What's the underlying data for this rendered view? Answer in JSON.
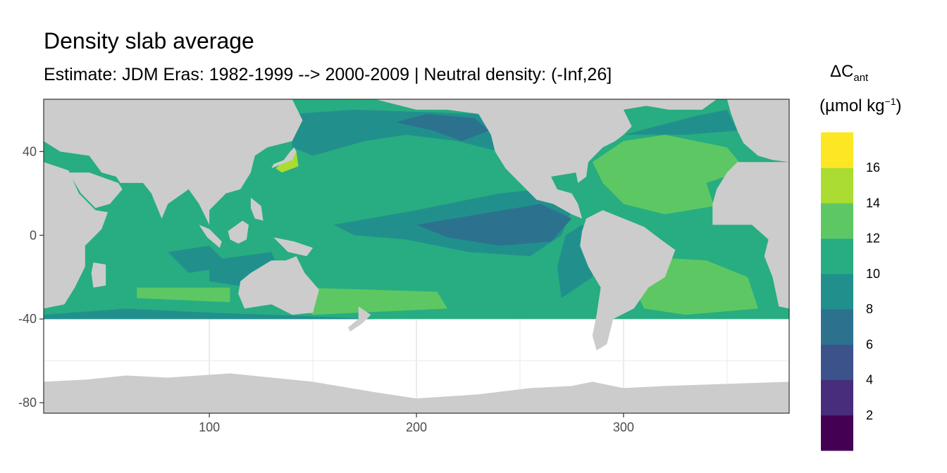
{
  "chart_data": {
    "type": "heatmap",
    "title": "Density slab average",
    "subtitle": "Estimate: JDM Eras: 1982-1999 --> 2000-2009 | Neutral density: (-Inf,26]",
    "xlabel": "",
    "ylabel": "",
    "xlim": [
      20,
      380
    ],
    "ylim": [
      -85,
      65
    ],
    "x_ticks": [
      100,
      200,
      300
    ],
    "y_ticks": [
      40,
      0,
      -40,
      -80
    ],
    "legend": {
      "title_main": "ΔC",
      "title_sub": "ant",
      "unit_prefix": "(µmol kg",
      "unit_sup": "−1",
      "unit_suffix": ")",
      "placement": "right",
      "breaks": [
        2,
        4,
        6,
        8,
        10,
        12,
        14,
        16
      ],
      "colors": [
        "#440154",
        "#472d7b",
        "#3b528b",
        "#2c728e",
        "#21908d",
        "#27ad81",
        "#5dc863",
        "#aadc32",
        "#fde725"
      ]
    },
    "colors": {
      "land": "#cccccc",
      "no_data": "#ffffff",
      "grid": "#ebebeb",
      "panel_border": "#333333"
    },
    "ocean_regions": [
      {
        "level": 12,
        "points": [
          [
            20,
            -40
          ],
          [
            380,
            -40
          ],
          [
            380,
            65
          ],
          [
            20,
            65
          ]
        ]
      },
      {
        "level": 10,
        "points": [
          [
            140,
            58
          ],
          [
            170,
            60
          ],
          [
            230,
            58
          ],
          [
            245,
            48
          ],
          [
            240,
            40
          ],
          [
            220,
            45
          ],
          [
            195,
            48
          ],
          [
            175,
            45
          ],
          [
            150,
            38
          ],
          [
            140,
            42
          ]
        ]
      },
      {
        "level": 8,
        "points": [
          [
            190,
            54
          ],
          [
            205,
            58
          ],
          [
            228,
            56
          ],
          [
            235,
            50
          ],
          [
            222,
            45
          ],
          [
            208,
            50
          ]
        ]
      },
      {
        "level": 10,
        "points": [
          [
            160,
            5
          ],
          [
            200,
            12
          ],
          [
            240,
            20
          ],
          [
            260,
            22
          ],
          [
            275,
            12
          ],
          [
            270,
            0
          ],
          [
            255,
            -10
          ],
          [
            225,
            -8
          ],
          [
            195,
            -2
          ],
          [
            170,
            0
          ]
        ]
      },
      {
        "level": 8,
        "points": [
          [
            200,
            5
          ],
          [
            230,
            10
          ],
          [
            260,
            15
          ],
          [
            275,
            8
          ],
          [
            265,
            -3
          ],
          [
            240,
            -5
          ],
          [
            215,
            -1
          ]
        ]
      },
      {
        "level": 10,
        "points": [
          [
            270,
            -30
          ],
          [
            285,
            -20
          ],
          [
            285,
            0
          ],
          [
            280,
            5
          ],
          [
            272,
            0
          ],
          [
            268,
            -15
          ]
        ]
      },
      {
        "level": 10,
        "points": [
          [
            100,
            -12
          ],
          [
            130,
            -8
          ],
          [
            135,
            -20
          ],
          [
            120,
            -25
          ],
          [
            100,
            -22
          ]
        ]
      },
      {
        "level": 10,
        "points": [
          [
            80,
            -8
          ],
          [
            100,
            -5
          ],
          [
            110,
            -15
          ],
          [
            90,
            -18
          ]
        ]
      },
      {
        "level": 14,
        "points": [
          [
            285,
            35
          ],
          [
            300,
            45
          ],
          [
            320,
            48
          ],
          [
            350,
            42
          ],
          [
            360,
            30
          ],
          [
            350,
            15
          ],
          [
            320,
            10
          ],
          [
            300,
            15
          ],
          [
            290,
            25
          ]
        ]
      },
      {
        "level": 12,
        "points": [
          [
            340,
            25
          ],
          [
            355,
            30
          ],
          [
            360,
            20
          ],
          [
            345,
            10
          ]
        ]
      },
      {
        "level": 14,
        "points": [
          [
            305,
            -10
          ],
          [
            340,
            -12
          ],
          [
            360,
            -20
          ],
          [
            365,
            -35
          ],
          [
            330,
            -38
          ],
          [
            310,
            -35
          ],
          [
            305,
            -25
          ]
        ]
      },
      {
        "level": 14,
        "points": [
          [
            65,
            -25
          ],
          [
            110,
            -25
          ],
          [
            110,
            -32
          ],
          [
            65,
            -30
          ]
        ]
      },
      {
        "level": 14,
        "points": [
          [
            145,
            -25
          ],
          [
            210,
            -27
          ],
          [
            215,
            -35
          ],
          [
            150,
            -38
          ],
          [
            140,
            -32
          ]
        ]
      },
      {
        "level": 10,
        "points": [
          [
            300,
            48
          ],
          [
            335,
            57
          ],
          [
            350,
            60
          ],
          [
            355,
            50
          ],
          [
            330,
            48
          ]
        ]
      },
      {
        "level": 10,
        "points": [
          [
            20,
            -38
          ],
          [
            60,
            -35
          ],
          [
            100,
            -37
          ],
          [
            130,
            -38
          ],
          [
            180,
            -40
          ],
          [
            280,
            -40
          ],
          [
            380,
            -40
          ],
          [
            20,
            -40
          ]
        ]
      },
      {
        "level": 16,
        "points": [
          [
            132,
            32
          ],
          [
            138,
            37
          ],
          [
            142,
            40
          ],
          [
            143,
            33
          ],
          [
            135,
            30
          ]
        ]
      }
    ],
    "land_regions": [
      {
        "name": "antarctica",
        "points": [
          [
            20,
            -85
          ],
          [
            380,
            -85
          ],
          [
            380,
            -70
          ],
          [
            350,
            -71
          ],
          [
            320,
            -72
          ],
          [
            300,
            -73
          ],
          [
            285,
            -70
          ],
          [
            275,
            -72
          ],
          [
            255,
            -73
          ],
          [
            230,
            -76
          ],
          [
            200,
            -78
          ],
          [
            180,
            -75
          ],
          [
            150,
            -70
          ],
          [
            110,
            -66
          ],
          [
            80,
            -68
          ],
          [
            60,
            -67
          ],
          [
            40,
            -69
          ],
          [
            20,
            -70
          ]
        ]
      },
      {
        "name": "eurasia",
        "points": [
          [
            20,
            65
          ],
          [
            140,
            65
          ],
          [
            145,
            55
          ],
          [
            140,
            45
          ],
          [
            128,
            42
          ],
          [
            122,
            38
          ],
          [
            120,
            30
          ],
          [
            115,
            22
          ],
          [
            108,
            20
          ],
          [
            100,
            12
          ],
          [
            100,
            5
          ],
          [
            95,
            15
          ],
          [
            90,
            22
          ],
          [
            80,
            15
          ],
          [
            77,
            8
          ],
          [
            72,
            20
          ],
          [
            68,
            25
          ],
          [
            57,
            25
          ],
          [
            55,
            28
          ],
          [
            48,
            30
          ],
          [
            42,
            38
          ],
          [
            28,
            40
          ],
          [
            20,
            45
          ]
        ]
      },
      {
        "name": "arabia",
        "points": [
          [
            35,
            30
          ],
          [
            42,
            30
          ],
          [
            56,
            25
          ],
          [
            58,
            22
          ],
          [
            52,
            15
          ],
          [
            45,
            13
          ],
          [
            38,
            20
          ],
          [
            32,
            30
          ]
        ]
      },
      {
        "name": "africa",
        "points": [
          [
            20,
            35
          ],
          [
            32,
            31
          ],
          [
            37,
            20
          ],
          [
            45,
            12
          ],
          [
            51,
            11
          ],
          [
            48,
            3
          ],
          [
            40,
            -5
          ],
          [
            40,
            -15
          ],
          [
            35,
            -25
          ],
          [
            30,
            -33
          ],
          [
            20,
            -35
          ]
        ]
      },
      {
        "name": "australia",
        "points": [
          [
            115,
            -22
          ],
          [
            120,
            -18
          ],
          [
            130,
            -12
          ],
          [
            137,
            -12
          ],
          [
            142,
            -10
          ],
          [
            146,
            -18
          ],
          [
            153,
            -26
          ],
          [
            150,
            -37
          ],
          [
            140,
            -38
          ],
          [
            130,
            -33
          ],
          [
            117,
            -35
          ],
          [
            114,
            -28
          ]
        ]
      },
      {
        "name": "north-america",
        "points": [
          [
            180,
            65
          ],
          [
            200,
            60
          ],
          [
            215,
            60
          ],
          [
            230,
            58
          ],
          [
            236,
            48
          ],
          [
            238,
            40
          ],
          [
            243,
            32
          ],
          [
            250,
            25
          ],
          [
            258,
            17
          ],
          [
            266,
            15
          ],
          [
            275,
            10
          ],
          [
            280,
            8
          ],
          [
            278,
            15
          ],
          [
            275,
            20
          ],
          [
            268,
            22
          ],
          [
            265,
            28
          ],
          [
            277,
            30
          ],
          [
            278,
            25
          ],
          [
            282,
            28
          ],
          [
            283,
            35
          ],
          [
            290,
            42
          ],
          [
            296,
            45
          ],
          [
            300,
            48
          ],
          [
            304,
            52
          ],
          [
            300,
            60
          ],
          [
            330,
            65
          ]
        ]
      },
      {
        "name": "south-america",
        "points": [
          [
            282,
            8
          ],
          [
            290,
            12
          ],
          [
            300,
            8
          ],
          [
            310,
            4
          ],
          [
            318,
            -2
          ],
          [
            325,
            -7
          ],
          [
            320,
            -20
          ],
          [
            312,
            -25
          ],
          [
            305,
            -35
          ],
          [
            295,
            -40
          ],
          [
            292,
            -52
          ],
          [
            287,
            -55
          ],
          [
            285,
            -48
          ],
          [
            287,
            -38
          ],
          [
            289,
            -25
          ],
          [
            283,
            -15
          ],
          [
            279,
            -5
          ],
          [
            280,
            2
          ]
        ]
      },
      {
        "name": "greenland",
        "points": [
          [
            300,
            65
          ],
          [
            345,
            65
          ],
          [
            338,
            60
          ],
          [
            322,
            60
          ],
          [
            310,
            62
          ]
        ]
      },
      {
        "name": "europe-west",
        "points": [
          [
            350,
            65
          ],
          [
            380,
            65
          ],
          [
            380,
            35
          ],
          [
            372,
            36
          ],
          [
            365,
            38
          ],
          [
            358,
            44
          ],
          [
            355,
            50
          ],
          [
            352,
            58
          ]
        ]
      },
      {
        "name": "africa-west",
        "points": [
          [
            360,
            35
          ],
          [
            380,
            35
          ],
          [
            380,
            -35
          ],
          [
            375,
            -34
          ],
          [
            372,
            -20
          ],
          [
            368,
            -10
          ],
          [
            370,
            -2
          ],
          [
            362,
            5
          ],
          [
            343,
            5
          ],
          [
            343,
            15
          ],
          [
            345,
            22
          ],
          [
            350,
            30
          ],
          [
            355,
            35
          ]
        ]
      },
      {
        "name": "madagascar",
        "points": [
          [
            44,
            -13
          ],
          [
            50,
            -14
          ],
          [
            50,
            -24
          ],
          [
            44,
            -25
          ],
          [
            43,
            -18
          ]
        ]
      },
      {
        "name": "borneo",
        "points": [
          [
            109,
            2
          ],
          [
            116,
            7
          ],
          [
            119,
            5
          ],
          [
            118,
            -2
          ],
          [
            114,
            -4
          ],
          [
            110,
            -2
          ]
        ]
      },
      {
        "name": "sumatra",
        "points": [
          [
            95,
            5
          ],
          [
            100,
            3
          ],
          [
            106,
            -3
          ],
          [
            105,
            -6
          ],
          [
            99,
            -1
          ]
        ]
      },
      {
        "name": "new-guinea",
        "points": [
          [
            131,
            -1
          ],
          [
            141,
            -3
          ],
          [
            150,
            -6
          ],
          [
            147,
            -10
          ],
          [
            138,
            -8
          ]
        ]
      },
      {
        "name": "new-zealand",
        "points": [
          [
            172,
            -34
          ],
          [
            178,
            -38
          ],
          [
            174,
            -42
          ],
          [
            168,
            -46
          ],
          [
            167,
            -44
          ],
          [
            172,
            -40
          ]
        ]
      },
      {
        "name": "japan",
        "points": [
          [
            130,
            32
          ],
          [
            135,
            34
          ],
          [
            140,
            36
          ],
          [
            142,
            40
          ],
          [
            141,
            42
          ],
          [
            139,
            40
          ],
          [
            136,
            36
          ],
          [
            131,
            34
          ]
        ]
      },
      {
        "name": "philippines",
        "points": [
          [
            120,
            18
          ],
          [
            125,
            14
          ],
          [
            126,
            7
          ],
          [
            122,
            8
          ],
          [
            120,
            13
          ]
        ]
      }
    ]
  }
}
